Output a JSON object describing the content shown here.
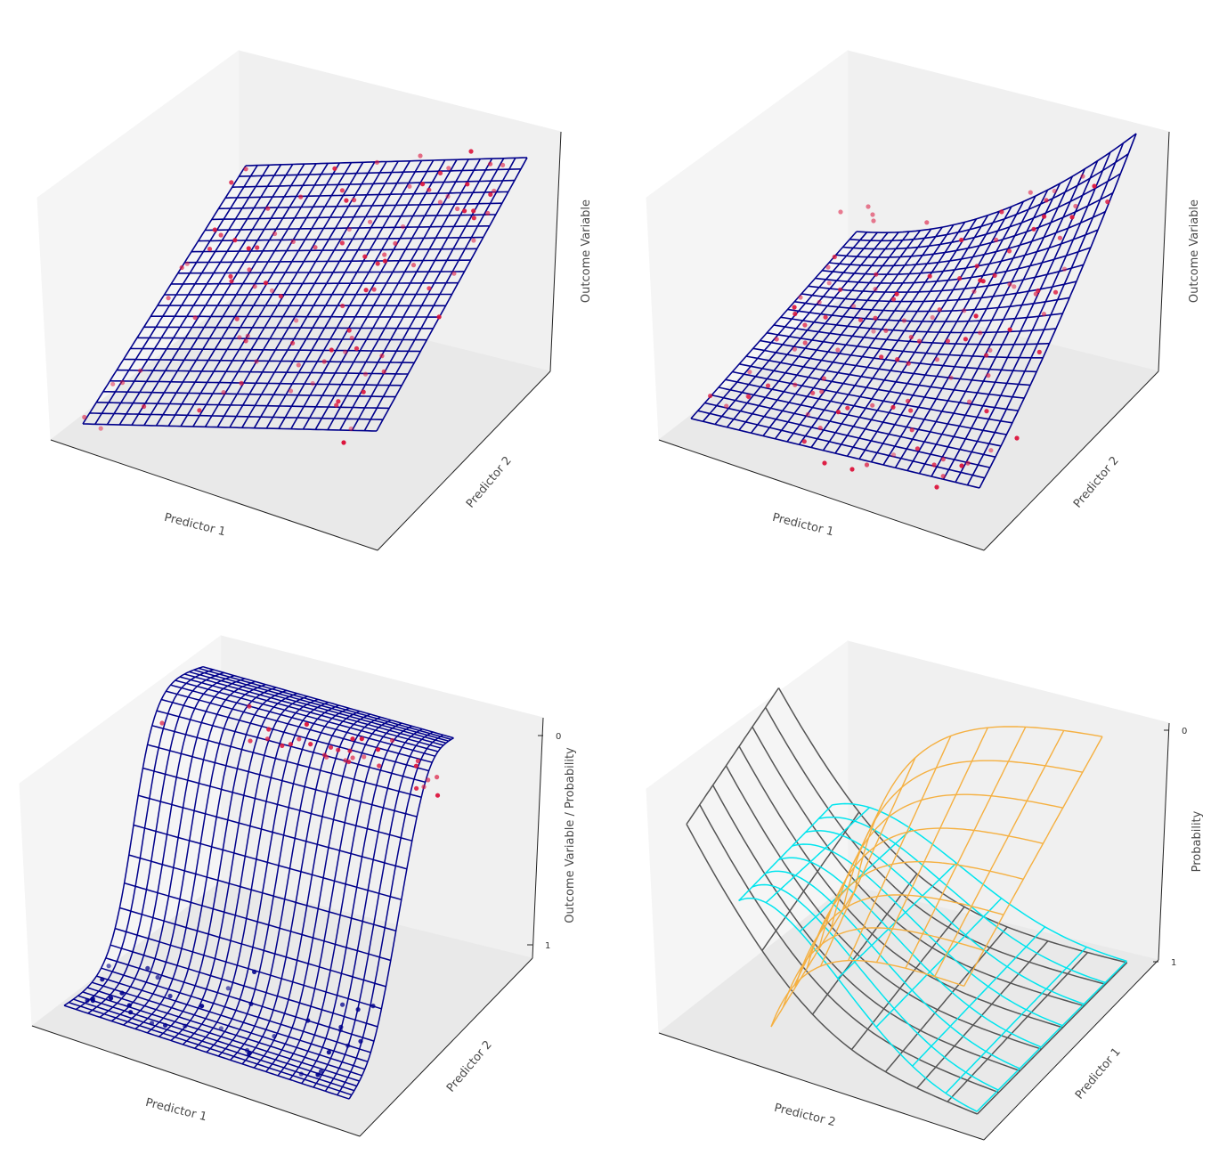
{
  "chart_data": [
    {
      "type": "surface3d",
      "subtype": "linear-regression-plane",
      "xlabel": "Predictor 1",
      "ylabel": "Predictor 2",
      "zlabel": "Outcome Variable",
      "ticks": "hidden",
      "grid": false,
      "surface_color": "#00008b",
      "point_color": "#dc143c",
      "surface_function": "linear",
      "points_description": "scattered observations around the plane",
      "point_count": 100
    },
    {
      "type": "surface3d",
      "subtype": "polynomial-regression-surface",
      "xlabel": "Predictor 1",
      "ylabel": "Predictor 2",
      "zlabel": "Outcome Variable",
      "ticks": "hidden",
      "grid": false,
      "surface_color": "#00008b",
      "point_color": "#dc143c",
      "surface_function": "quadratic",
      "point_count": 100
    },
    {
      "type": "surface3d",
      "subtype": "logistic-regression-surface",
      "xlabel": "Predictor 1",
      "ylabel": "Predictor 2",
      "zlabel": "Outcome Variable / Probability",
      "zticks": [
        "0",
        "1"
      ],
      "zlim": [
        0,
        1
      ],
      "grid": false,
      "surface_color": "#00008b",
      "point_colors": {
        "outcome_1": "#dc143c",
        "outcome_0": "#00008b"
      },
      "surface_function": "logistic"
    },
    {
      "type": "surface3d",
      "subtype": "multinomial-class-probabilities",
      "xlabel": "Predictor 2",
      "ylabel": "Predictor 1",
      "zlabel": "Probability",
      "zticks": [
        "0",
        "1"
      ],
      "zlim": [
        0,
        1
      ],
      "grid": false,
      "series": [
        {
          "color": "#555555"
        },
        {
          "color": "#00e5ee"
        },
        {
          "color": "#f5b041"
        }
      ]
    }
  ]
}
